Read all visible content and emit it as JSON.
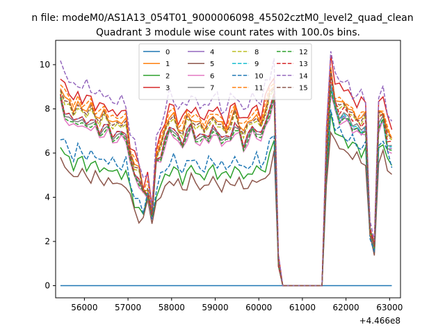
{
  "chart_data": {
    "type": "line",
    "suptitle": "n file: modeM0/AS1A13_054T01_9000006098_45502cztM0_level2_quad_clean",
    "title": "Quadrant 3 module wise count rates with 100.0s bins.",
    "xlabel": "",
    "ylabel": "",
    "offset_text": "+4.466e8",
    "xlim": [
      55340,
      63250
    ],
    "ylim": [
      -0.55,
      11.1
    ],
    "xticks": [
      56000,
      57000,
      58000,
      59000,
      60000,
      61000,
      62000,
      63000
    ],
    "xtick_labels": [
      "56000",
      "57000",
      "58000",
      "59000",
      "60000",
      "61000",
      "62000",
      "63000"
    ],
    "yticks": [
      0,
      2,
      4,
      6,
      8,
      10
    ],
    "ytick_labels": [
      "0",
      "2",
      "4",
      "6",
      "8",
      "10"
    ],
    "grid": false,
    "legend": {
      "position": "top-center",
      "columns": 4
    },
    "x_start": 55450,
    "x_step": 100,
    "n_points": 77,
    "gap": {
      "start_index": 50,
      "end_index": 60
    },
    "series": [
      {
        "name": "0",
        "color": "#1f77b4",
        "dash": "solid",
        "base": 0.0,
        "dip": 0.0,
        "trans": 0.0
      },
      {
        "name": "1",
        "color": "#ff7f0e",
        "dash": "solid",
        "base": 7.4,
        "dip": 3.2,
        "trans": 8.3
      },
      {
        "name": "2",
        "color": "#2ca02c",
        "dash": "solid",
        "base": 5.1,
        "dip": 3.0,
        "trans": 6.7
      },
      {
        "name": "3",
        "color": "#d62728",
        "dash": "solid",
        "base": 7.8,
        "dip": 3.6,
        "trans": 9.0
      },
      {
        "name": "4",
        "color": "#9467bd",
        "dash": "solid",
        "base": 6.9,
        "dip": 3.1,
        "trans": 7.6
      },
      {
        "name": "5",
        "color": "#8c564b",
        "dash": "solid",
        "base": 4.6,
        "dip": 2.8,
        "trans": 6.2
      },
      {
        "name": "6",
        "color": "#e377c2",
        "dash": "solid",
        "base": 6.6,
        "dip": 3.0,
        "trans": 7.5
      },
      {
        "name": "7",
        "color": "#7f7f7f",
        "dash": "solid",
        "base": 6.8,
        "dip": 3.1,
        "trans": 7.8
      },
      {
        "name": "8",
        "color": "#bcbd22",
        "dash": "dashed",
        "base": 7.2,
        "dip": 3.3,
        "trans": 8.1
      },
      {
        "name": "9",
        "color": "#17becf",
        "dash": "dashed",
        "base": 6.9,
        "dip": 3.2,
        "trans": 7.7
      },
      {
        "name": "10",
        "color": "#1f77b4",
        "dash": "dashed",
        "base": 5.5,
        "dip": 3.0,
        "trans": 6.9
      },
      {
        "name": "11",
        "color": "#ff7f0e",
        "dash": "dashed",
        "base": 7.6,
        "dip": 3.4,
        "trans": 8.4
      },
      {
        "name": "12",
        "color": "#2ca02c",
        "dash": "dashed",
        "base": 6.7,
        "dip": 3.1,
        "trans": 7.6
      },
      {
        "name": "13",
        "color": "#d62728",
        "dash": "dashed",
        "base": 6.9,
        "dip": 3.2,
        "trans": 8.0
      },
      {
        "name": "14",
        "color": "#9467bd",
        "dash": "dashed",
        "base": 8.3,
        "dip": 3.5,
        "trans": 9.3
      },
      {
        "name": "15",
        "color": "#8c564b",
        "dash": "dashed",
        "base": 7.3,
        "dip": 3.3,
        "trans": 8.2
      }
    ]
  }
}
